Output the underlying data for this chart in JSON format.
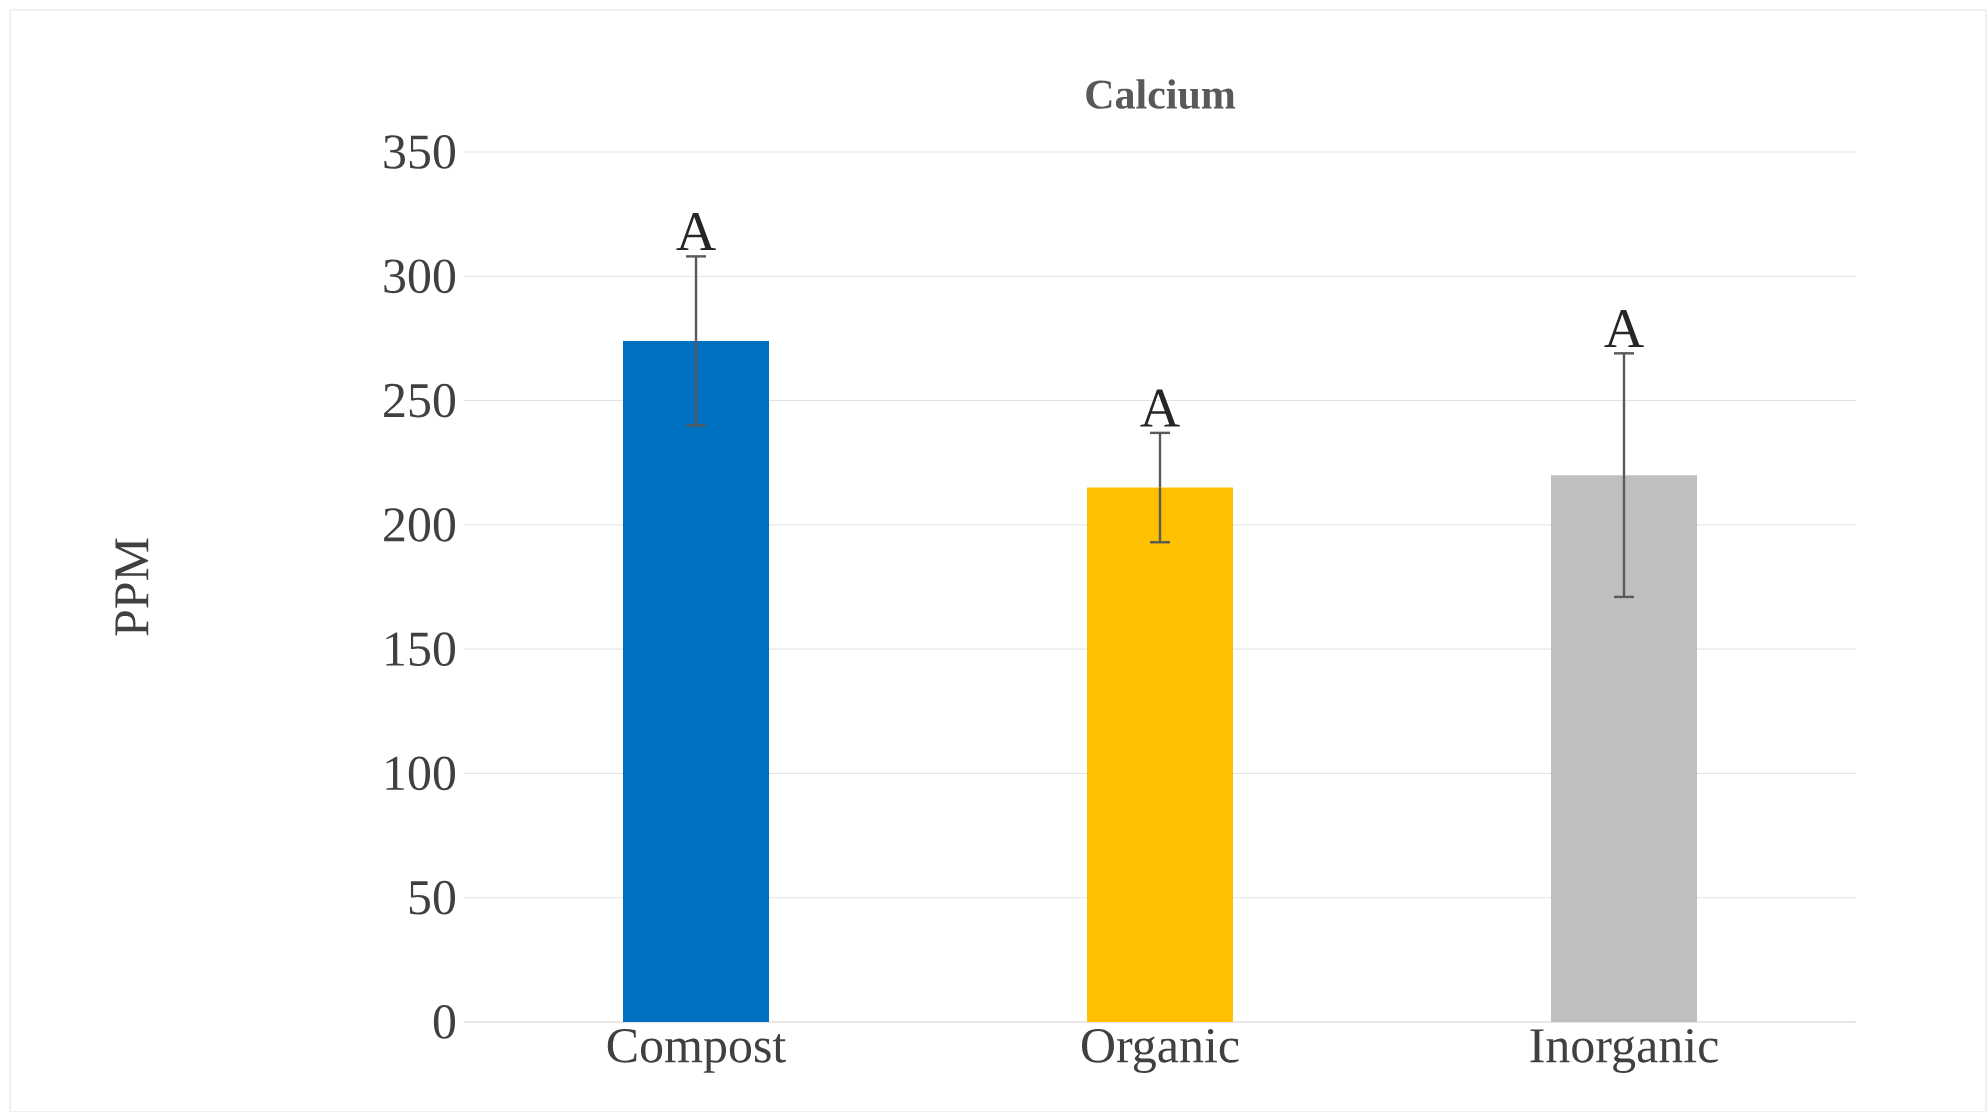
{
  "chart_data": {
    "type": "bar",
    "title": "Calcium",
    "ylabel": "PPM",
    "categories": [
      "Compost",
      "Organic",
      "Inorganic"
    ],
    "values": [
      274,
      215,
      220
    ],
    "errors": [
      34,
      22,
      49
    ],
    "colors": [
      "#0070c0",
      "#ffc000",
      "#bfbfbf"
    ],
    "ylim": [
      0,
      350
    ],
    "yticks": [
      0,
      50,
      100,
      150,
      200,
      250,
      300,
      350
    ],
    "grid": "y",
    "annotations": [
      "A",
      "A",
      "A"
    ]
  }
}
